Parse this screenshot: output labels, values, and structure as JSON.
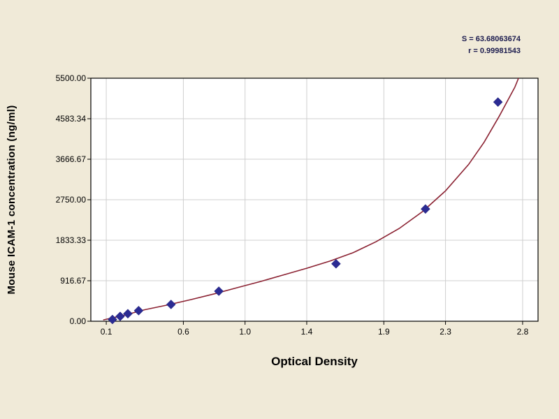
{
  "chart_data": {
    "type": "scatter",
    "title": "",
    "xlabel": "Optical Density",
    "ylabel": "Mouse ICAM-1 concentration (ng/ml)",
    "xlim": [
      0,
      2.9
    ],
    "ylim": [
      0,
      5500
    ],
    "grid": true,
    "x_ticks": [
      0.1,
      0.6,
      1.0,
      1.4,
      1.9,
      2.3,
      2.8
    ],
    "x_tick_labels": [
      "0.1",
      "0.6",
      "1.0",
      "1.4",
      "1.9",
      "2.3",
      "2.8"
    ],
    "y_ticks": [
      0,
      916.67,
      1833.33,
      2750,
      3666.67,
      4583.34,
      5500
    ],
    "y_tick_labels": [
      "0.00",
      "916.67",
      "1833.33",
      "2750.00",
      "3666.67",
      "4583.34",
      "5500.00"
    ],
    "annotations": [
      "S = 63.68063674",
      "r = 0.99981543"
    ],
    "series": [
      {
        "name": "standard-points",
        "type": "scatter",
        "marker": "diamond",
        "color": "#2b2b93",
        "points": [
          [
            0.14,
            40
          ],
          [
            0.19,
            110
          ],
          [
            0.24,
            170
          ],
          [
            0.31,
            240
          ],
          [
            0.52,
            380
          ],
          [
            0.83,
            680
          ],
          [
            1.59,
            1300
          ],
          [
            2.17,
            2540
          ],
          [
            2.64,
            4960
          ]
        ]
      },
      {
        "name": "fit-curve",
        "type": "line",
        "color": "#8b2232",
        "points": [
          [
            0.08,
            30
          ],
          [
            0.2,
            120
          ],
          [
            0.35,
            260
          ],
          [
            0.5,
            370
          ],
          [
            0.65,
            490
          ],
          [
            0.8,
            620
          ],
          [
            0.95,
            760
          ],
          [
            1.1,
            900
          ],
          [
            1.25,
            1050
          ],
          [
            1.4,
            1200
          ],
          [
            1.55,
            1360
          ],
          [
            1.7,
            1550
          ],
          [
            1.85,
            1800
          ],
          [
            2.0,
            2100
          ],
          [
            2.15,
            2480
          ],
          [
            2.3,
            2950
          ],
          [
            2.45,
            3550
          ],
          [
            2.55,
            4050
          ],
          [
            2.65,
            4650
          ],
          [
            2.75,
            5300
          ],
          [
            2.82,
            5900
          ]
        ]
      }
    ],
    "colors": {
      "page_bg": "#f0ead8",
      "plot_bg": "#ffffff",
      "grid": "#cfcfcf",
      "axis": "#000000",
      "text": "#000000",
      "stats_text": "#1b1b4e"
    }
  }
}
